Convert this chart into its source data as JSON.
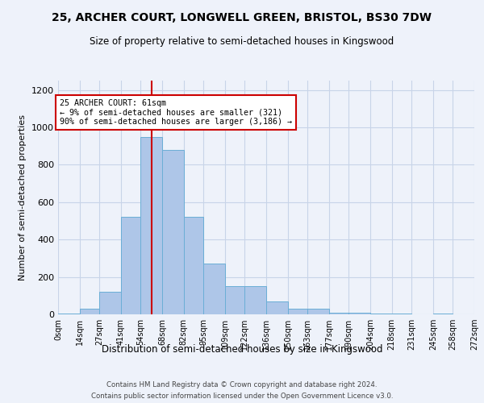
{
  "title": "25, ARCHER COURT, LONGWELL GREEN, BRISTOL, BS30 7DW",
  "subtitle": "Size of property relative to semi-detached houses in Kingswood",
  "xlabel": "Distribution of semi-detached houses by size in Kingswood",
  "ylabel": "Number of semi-detached properties",
  "property_label": "25 ARCHER COURT: 61sqm",
  "pct_smaller": 9,
  "count_smaller": 321,
  "pct_larger": 90,
  "count_larger": "3,186",
  "bin_edges": [
    0,
    14,
    27,
    41,
    54,
    68,
    82,
    95,
    109,
    122,
    136,
    150,
    163,
    177,
    190,
    204,
    218,
    231,
    245,
    258,
    272
  ],
  "bin_labels": [
    "0sqm",
    "14sqm",
    "27sqm",
    "41sqm",
    "54sqm",
    "68sqm",
    "82sqm",
    "95sqm",
    "109sqm",
    "122sqm",
    "136sqm",
    "150sqm",
    "163sqm",
    "177sqm",
    "190sqm",
    "204sqm",
    "218sqm",
    "231sqm",
    "245sqm",
    "258sqm",
    "272sqm"
  ],
  "bar_heights": [
    5,
    30,
    120,
    520,
    950,
    880,
    520,
    270,
    150,
    150,
    70,
    30,
    30,
    10,
    10,
    5,
    5,
    0,
    5,
    0
  ],
  "bar_color": "#aec6e8",
  "bar_edge_color": "#6aaed6",
  "vline_color": "#cc0000",
  "vline_x": 61,
  "annotation_box_color": "#cc0000",
  "grid_color": "#c8d4e8",
  "background_color": "#eef2fa",
  "ylim": [
    0,
    1250
  ],
  "yticks": [
    0,
    200,
    400,
    600,
    800,
    1000,
    1200
  ],
  "footer_line1": "Contains HM Land Registry data © Crown copyright and database right 2024.",
  "footer_line2": "Contains public sector information licensed under the Open Government Licence v3.0."
}
